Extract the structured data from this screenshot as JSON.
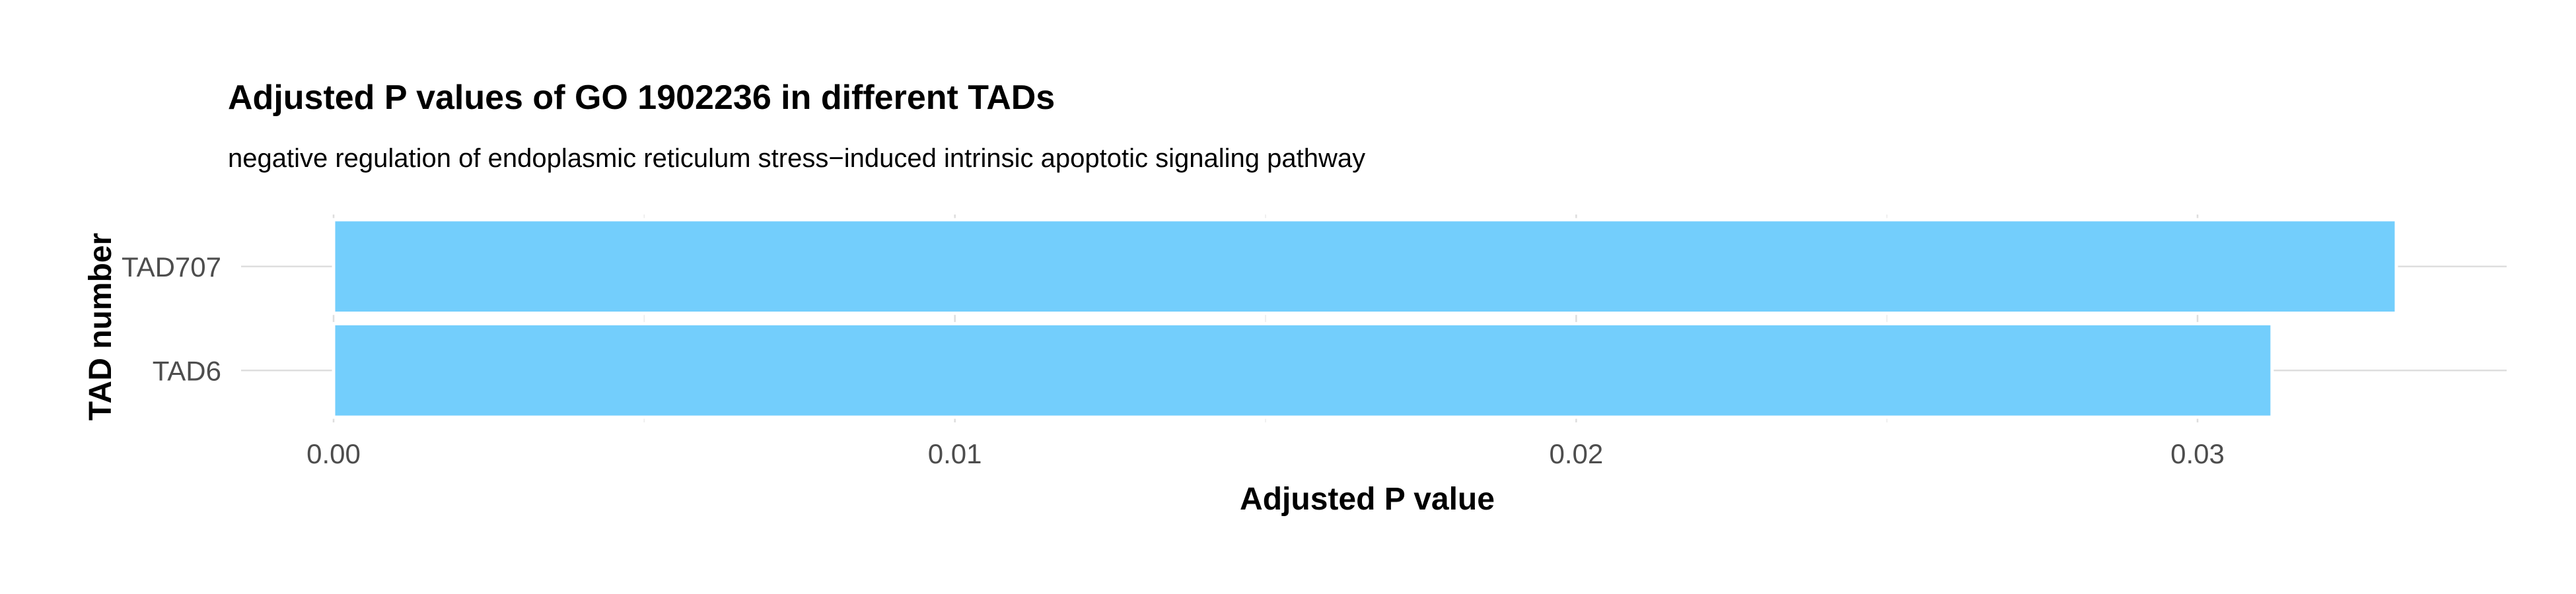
{
  "chart_data": {
    "type": "bar",
    "orientation": "horizontal",
    "title": "Adjusted P values of GO 1902236 in different TADs",
    "subtitle": "negative regulation of endoplasmic reticulum stress−induced intrinsic apoptotic signaling pathway",
    "xlabel": "Adjusted P value",
    "ylabel": "TAD number",
    "categories": [
      "TAD707",
      "TAD6"
    ],
    "values": [
      0.0332,
      0.0312
    ],
    "xlim": [
      0,
      0.035
    ],
    "x_ticks": [
      0,
      0.01,
      0.02,
      0.03
    ],
    "x_tick_labels": [
      "0.00",
      "0.01",
      "0.02",
      "0.03"
    ],
    "bar_color": "#73cefc",
    "grid": true,
    "legend": "none"
  }
}
